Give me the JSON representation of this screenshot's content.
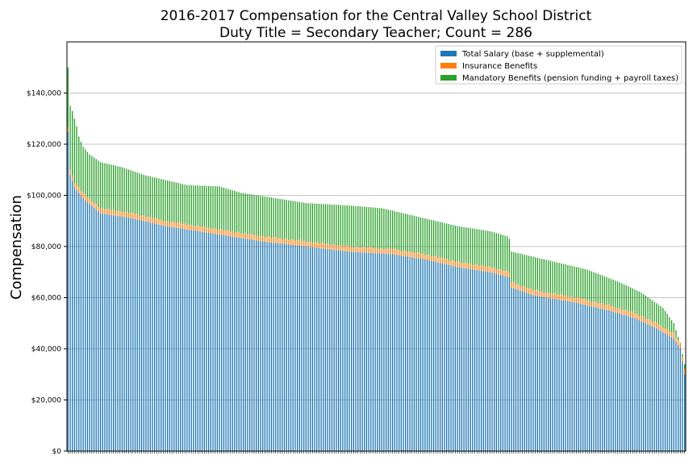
{
  "chart_data": {
    "type": "bar",
    "stacked": true,
    "title": "2016-2017 Compensation for the Central Valley School District",
    "subtitle": "Duty Title = Secondary Teacher; Count = 286",
    "ylabel": "Compensation",
    "xlabel": "",
    "ylim": [
      0,
      160000
    ],
    "yticks": [
      0,
      20000,
      40000,
      60000,
      80000,
      100000,
      120000,
      140000
    ],
    "ytick_labels": [
      "$0",
      "$20,000",
      "$40,000",
      "$60,000",
      "$80,000",
      "$100,000",
      "$120,000",
      "$140,000"
    ],
    "grid": "horizontal",
    "legend_position": "top-right",
    "count": 286,
    "sort": "descending by total compensation",
    "series": [
      {
        "name": "Total Salary (base + supplemental)",
        "color": "#1f77b4"
      },
      {
        "name": "Insurance Benefits",
        "color": "#ff7f0e"
      },
      {
        "name": "Mandatory Benefits (pension funding + payroll taxes)",
        "color": "#2ca02c"
      }
    ],
    "total_profile": [
      [
        0,
        150000
      ],
      [
        1,
        135000
      ],
      [
        2,
        133000
      ],
      [
        4,
        127000
      ],
      [
        5,
        123000
      ],
      [
        7,
        119000
      ],
      [
        10,
        116000
      ],
      [
        15,
        113000
      ],
      [
        25,
        111000
      ],
      [
        35,
        108000
      ],
      [
        45,
        106000
      ],
      [
        55,
        104000
      ],
      [
        70,
        103500
      ],
      [
        80,
        101000
      ],
      [
        95,
        99000
      ],
      [
        110,
        97000
      ],
      [
        130,
        96000
      ],
      [
        145,
        95000
      ],
      [
        155,
        93000
      ],
      [
        170,
        90000
      ],
      [
        180,
        88000
      ],
      [
        195,
        86000
      ],
      [
        203,
        84000
      ],
      [
        204,
        83000
      ],
      [
        205,
        78000
      ],
      [
        215,
        76000
      ],
      [
        225,
        74000
      ],
      [
        240,
        71000
      ],
      [
        255,
        66000
      ],
      [
        265,
        62000
      ],
      [
        275,
        56000
      ],
      [
        280,
        50000
      ],
      [
        283,
        42000
      ],
      [
        285,
        34000
      ],
      [
        286,
        24000
      ]
    ],
    "salary_profile": [
      [
        0,
        125000
      ],
      [
        1,
        108000
      ],
      [
        3,
        103000
      ],
      [
        5,
        101000
      ],
      [
        8,
        98000
      ],
      [
        15,
        93000
      ],
      [
        30,
        91000
      ],
      [
        45,
        88000
      ],
      [
        60,
        86000
      ],
      [
        75,
        84000
      ],
      [
        90,
        82000
      ],
      [
        110,
        80000
      ],
      [
        130,
        78000
      ],
      [
        150,
        77000
      ],
      [
        165,
        75000
      ],
      [
        180,
        72000
      ],
      [
        195,
        70000
      ],
      [
        204,
        68000
      ],
      [
        205,
        64000
      ],
      [
        215,
        61000
      ],
      [
        235,
        58000
      ],
      [
        250,
        55000
      ],
      [
        262,
        52000
      ],
      [
        272,
        48000
      ],
      [
        280,
        44000
      ],
      [
        283,
        40000
      ],
      [
        285,
        30000
      ],
      [
        286,
        23000
      ]
    ],
    "insurance_typical": 2000
  }
}
